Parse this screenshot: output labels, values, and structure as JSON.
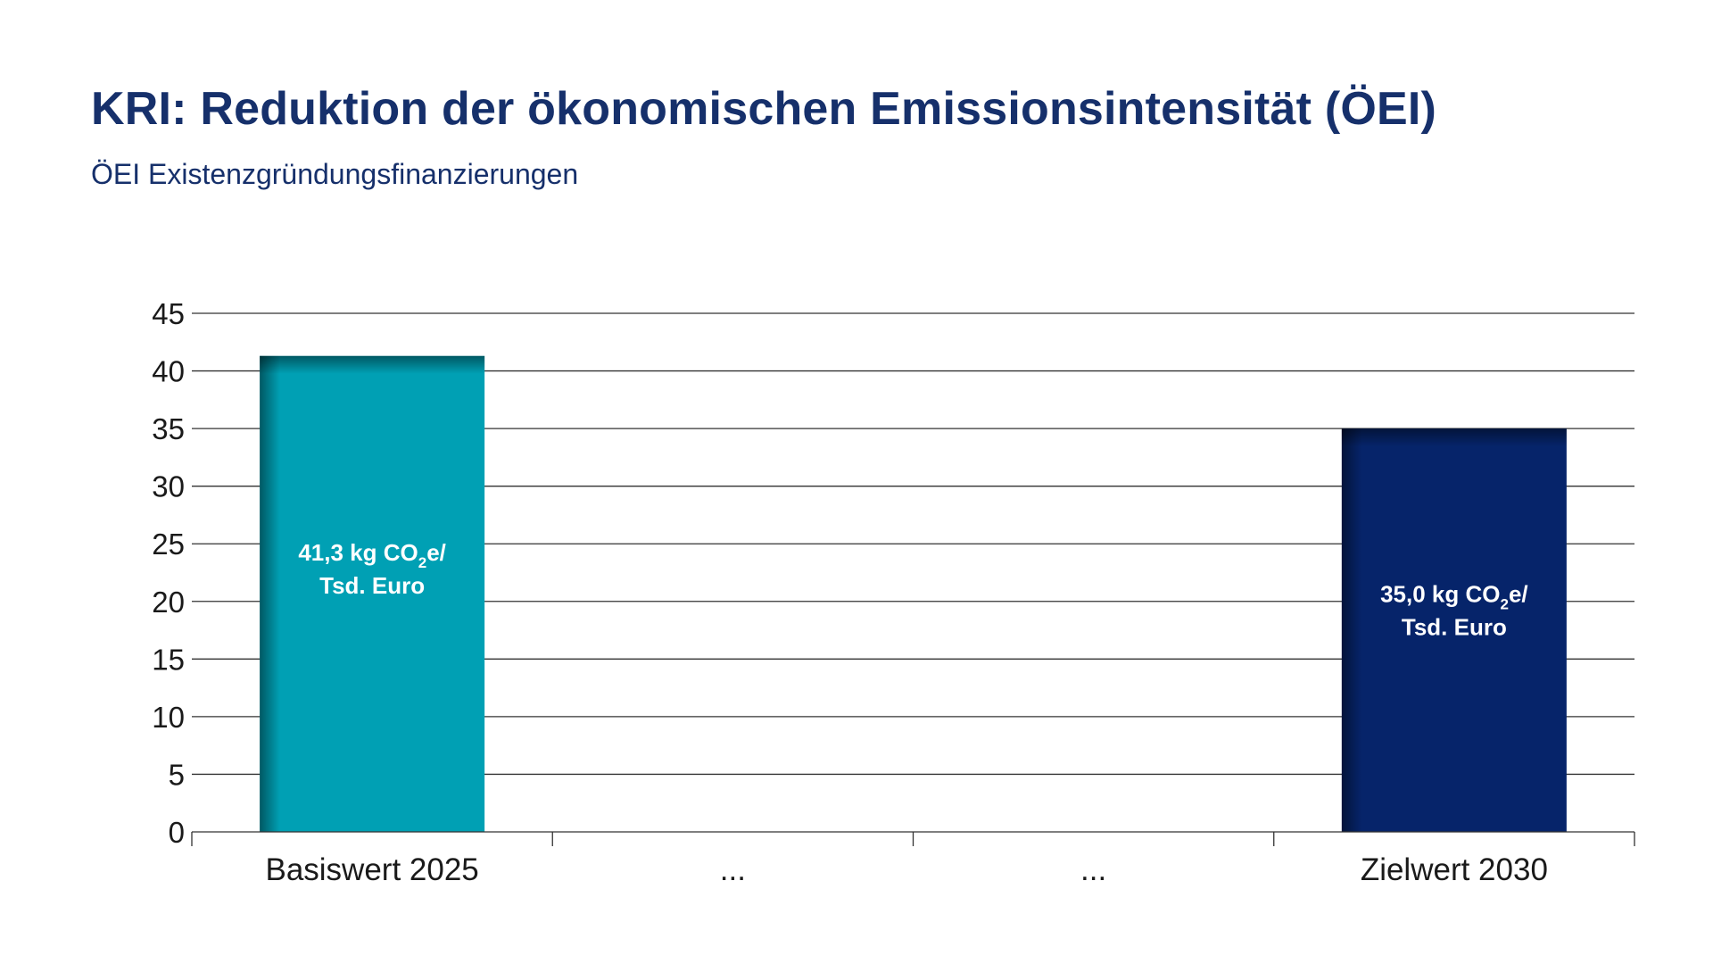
{
  "header": {
    "title": "KRI: Reduktion der ökonomischen Emissionsintensität (ÖEI)",
    "subtitle": "ÖEI Existenzgründungsfinanzierungen"
  },
  "colors": {
    "title": "#16306b",
    "gridline": "#333333",
    "bar_teal": "#00a0b4",
    "bar_navy": "#06246a"
  },
  "chart_data": {
    "type": "bar",
    "title": "KRI: Reduktion der ökonomischen Emissionsintensität (ÖEI)",
    "subtitle": "ÖEI Existenzgründungsfinanzierungen",
    "xlabel": "",
    "ylabel": "",
    "ylim": [
      0,
      45
    ],
    "yticks": [
      "0",
      "5",
      "10",
      "15",
      "20",
      "25",
      "30",
      "35",
      "40",
      "45"
    ],
    "grid": true,
    "categories": [
      "Basiswert 2025",
      "...",
      "...",
      "Zielwert 2030"
    ],
    "values": [
      41.3,
      null,
      null,
      35.0
    ],
    "bar_colors": [
      "#00a0b4",
      null,
      null,
      "#06246a"
    ],
    "data_labels": [
      {
        "line1_pre": "41,3 kg CO",
        "line1_sub": "2",
        "line1_post": "e/",
        "line2": "Tsd. Euro"
      },
      null,
      null,
      {
        "line1_pre": "35,0 kg CO",
        "line1_sub": "2",
        "line1_post": "e/",
        "line2": "Tsd. Euro"
      }
    ]
  }
}
